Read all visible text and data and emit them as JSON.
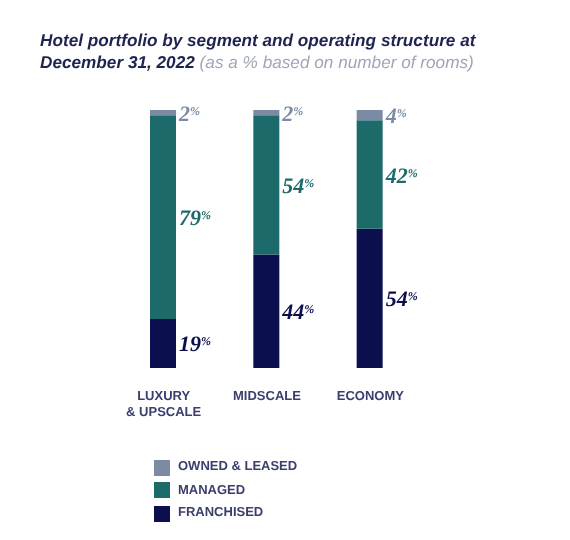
{
  "chart_data": {
    "type": "bar",
    "title": "Hotel portfolio by segment and operating structure at December 31, 2022",
    "subtitle": "(as a % based on number of rooms)",
    "categories": [
      "LUXURY & UPSCALE",
      "MIDSCALE",
      "ECONOMY"
    ],
    "stacked": true,
    "legend": "bottom",
    "series": [
      {
        "name": "FRANCHISED",
        "color": "#0c0f4d",
        "values": [
          19,
          44,
          54
        ],
        "value_labels": [
          "19$^{%}$",
          "44$^{%}$",
          "54$^{%}$"
        ]
      },
      {
        "name": "MANAGED",
        "color": "#1d6a6b",
        "values": [
          79,
          54,
          42
        ],
        "value_labels": [
          "79$^{%}$",
          "54$^{%}$",
          "42$^{%}$"
        ]
      },
      {
        "name": "OWNED & LEASED",
        "color": "#7a8ba3",
        "values": [
          2,
          2,
          4
        ],
        "value_labels": [
          "2$^{%}$",
          "2$^{%}$",
          "4$^{%}$"
        ]
      }
    ]
  }
}
